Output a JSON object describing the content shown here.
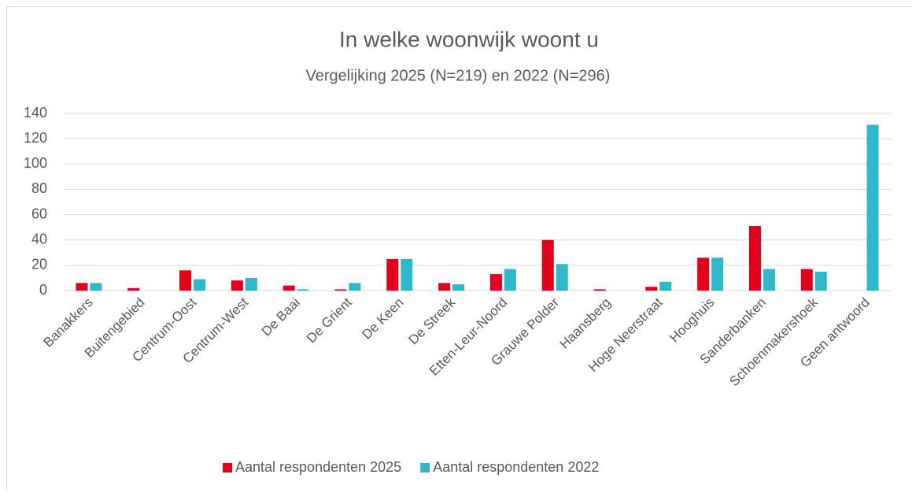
{
  "chart_data": {
    "type": "bar",
    "title": "In welke woonwijk woont u",
    "subtitle": "Vergelijking 2025 (N=219) en 2022 (N=296)",
    "categories": [
      "Banakkers",
      "Buitengebied",
      "Centrum-Oost",
      "Centrum-West",
      "De Baai",
      "De Grient",
      "De Keen",
      "De Streek",
      "Etten-Leur-Noord",
      "Grauwe Polder",
      "Haansberg",
      "Hoge Neerstraat",
      "Hooghuis",
      "Sanderbanken",
      "Schoenmakershoek",
      "Geen antwoord"
    ],
    "series": [
      {
        "name": "Aantal respondenten 2025",
        "color": "#e3001b",
        "values": [
          6,
          2,
          16,
          8,
          4,
          1,
          25,
          6,
          13,
          40,
          1,
          3,
          26,
          51,
          17,
          0
        ]
      },
      {
        "name": "Aantal respondenten 2022",
        "color": "#2fb8c9",
        "values": [
          6,
          0,
          9,
          10,
          1,
          6,
          25,
          5,
          17,
          21,
          0,
          7,
          26,
          17,
          15,
          131
        ]
      }
    ],
    "ylim": [
      0,
      140
    ],
    "yticks": [
      0,
      20,
      40,
      60,
      80,
      100,
      120,
      140
    ],
    "grid": true,
    "legend": "bottom"
  }
}
